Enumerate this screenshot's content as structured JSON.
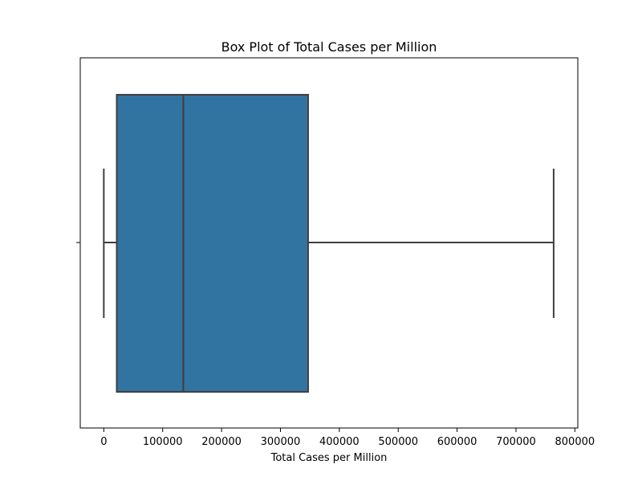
{
  "chart_data": {
    "type": "box",
    "title": "Box Plot of Total Cases per Million",
    "xlabel": "Total Cases per Million",
    "ylabel": "",
    "xlim": [
      -40000,
      805000
    ],
    "x_ticks": [
      0,
      100000,
      200000,
      300000,
      400000,
      500000,
      600000,
      700000,
      800000
    ],
    "x_tick_labels": [
      "0",
      "100000",
      "200000",
      "300000",
      "400000",
      "500000",
      "600000",
      "700000",
      "800000"
    ],
    "grid": false,
    "box": {
      "whisker_low": 0,
      "q1": 22000,
      "median": 135000,
      "q3": 347000,
      "whisker_high": 764000
    },
    "colors": {
      "box_fill": "#3274a1",
      "line": "#3f3f3f",
      "axes": "#000000"
    }
  }
}
